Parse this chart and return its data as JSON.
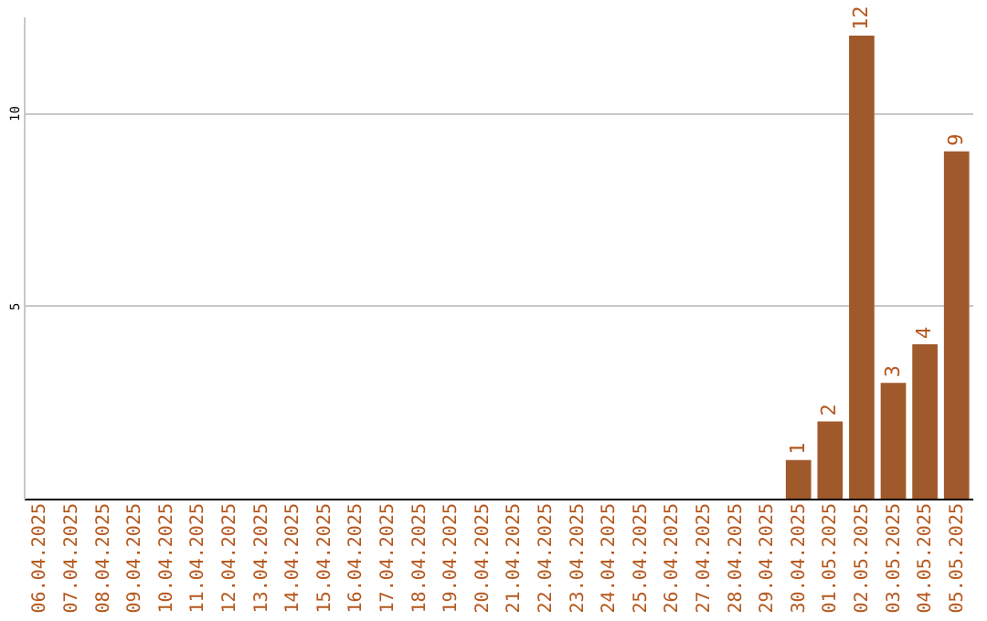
{
  "chart_data": {
    "type": "bar",
    "categories": [
      "06.04.2025",
      "07.04.2025",
      "08.04.2025",
      "09.04.2025",
      "10.04.2025",
      "11.04.2025",
      "12.04.2025",
      "13.04.2025",
      "14.04.2025",
      "15.04.2025",
      "16.04.2025",
      "17.04.2025",
      "18.04.2025",
      "19.04.2025",
      "20.04.2025",
      "21.04.2025",
      "22.04.2025",
      "23.04.2025",
      "24.04.2025",
      "25.04.2025",
      "26.04.2025",
      "27.04.2025",
      "28.04.2025",
      "29.04.2025",
      "30.04.2025",
      "01.05.2025",
      "02.05.2025",
      "03.05.2025",
      "04.05.2025",
      "05.05.2025"
    ],
    "values": [
      0,
      0,
      0,
      0,
      0,
      0,
      0,
      0,
      0,
      0,
      0,
      0,
      0,
      0,
      0,
      0,
      0,
      0,
      0,
      0,
      0,
      0,
      0,
      0,
      1,
      2,
      12,
      3,
      4,
      9
    ],
    "value_labels": [
      null,
      null,
      null,
      null,
      null,
      null,
      null,
      null,
      null,
      null,
      null,
      null,
      null,
      null,
      null,
      null,
      null,
      null,
      null,
      null,
      null,
      null,
      null,
      null,
      "1",
      "2",
      "12",
      "3",
      "4",
      "9"
    ],
    "color": "#a0592a",
    "ylim": [
      0,
      12.5
    ],
    "yticks": [
      5,
      10
    ],
    "grid": "y"
  }
}
